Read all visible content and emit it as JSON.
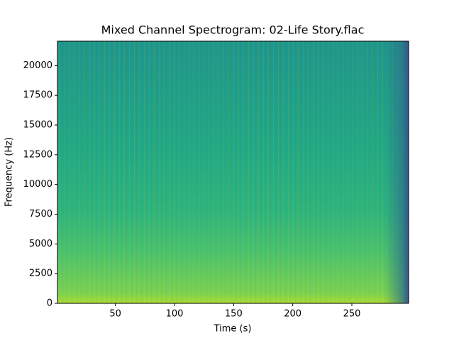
{
  "chart_data": {
    "type": "spectrogram",
    "title": "Mixed Channel Spectrogram: 02-Life Story.flac",
    "x_label": "Time (s)",
    "y_label": "Frequency (Hz)",
    "xlim": [
      1,
      298
    ],
    "ylim": [
      0,
      22050
    ],
    "xticks": [
      50,
      100,
      150,
      200,
      250
    ],
    "yticks": [
      0,
      2500,
      5000,
      7500,
      10000,
      12500,
      15000,
      17500,
      20000
    ],
    "colormap": "viridis"
  }
}
